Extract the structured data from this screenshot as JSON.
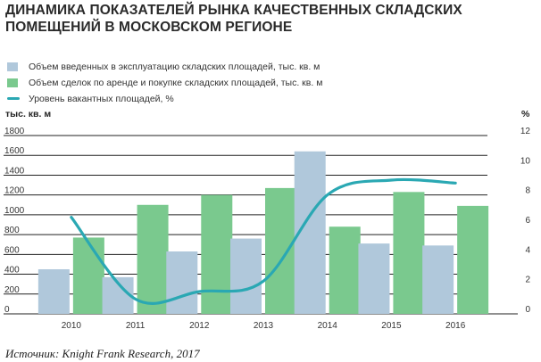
{
  "title": "ДИНАМИКА ПОКАЗАТЕЛЕЙ РЫНКА КАЧЕСТВЕННЫХ СКЛАДСКИХ ПОМЕЩЕНИЙ В МОСКОВСКОМ РЕГИОНЕ",
  "source": "Источник: Knight Frank Research, 2017",
  "colors": {
    "bar1": "#b0c8db",
    "bar2": "#7ac98e",
    "line": "#2aa8b3",
    "grid": "#222222"
  },
  "chart_data": {
    "type": "bar+line",
    "categories": [
      "2010",
      "2011",
      "2012",
      "2013",
      "2014",
      "2015",
      "2016"
    ],
    "series": [
      {
        "name": "Объем введенных в эксплуатацию складских площадей, тыс. кв. м",
        "type": "bar",
        "axis": "left",
        "values": [
          450,
          370,
          630,
          760,
          1640,
          710,
          690
        ]
      },
      {
        "name": "Объем сделок по аренде и покупке складских площадей, тыс. кв. м",
        "type": "bar",
        "axis": "left",
        "values": [
          770,
          1100,
          1200,
          1270,
          880,
          1230,
          1090
        ]
      },
      {
        "name": "Уровень вакантных площадей, %",
        "type": "line",
        "axis": "right",
        "values": [
          6.5,
          1.0,
          1.5,
          2.2,
          8.0,
          9.0,
          8.8
        ]
      }
    ],
    "y_left": {
      "label": "тыс. кв. м",
      "ticks": [
        0,
        200,
        400,
        600,
        800,
        1000,
        1200,
        1400,
        1600,
        1800
      ],
      "range": [
        0,
        1800
      ]
    },
    "y_right": {
      "label": "%",
      "ticks": [
        0,
        2,
        4,
        6,
        8,
        10,
        12
      ],
      "range": [
        0,
        12
      ]
    },
    "legend_position": "top-left",
    "grid": true
  }
}
